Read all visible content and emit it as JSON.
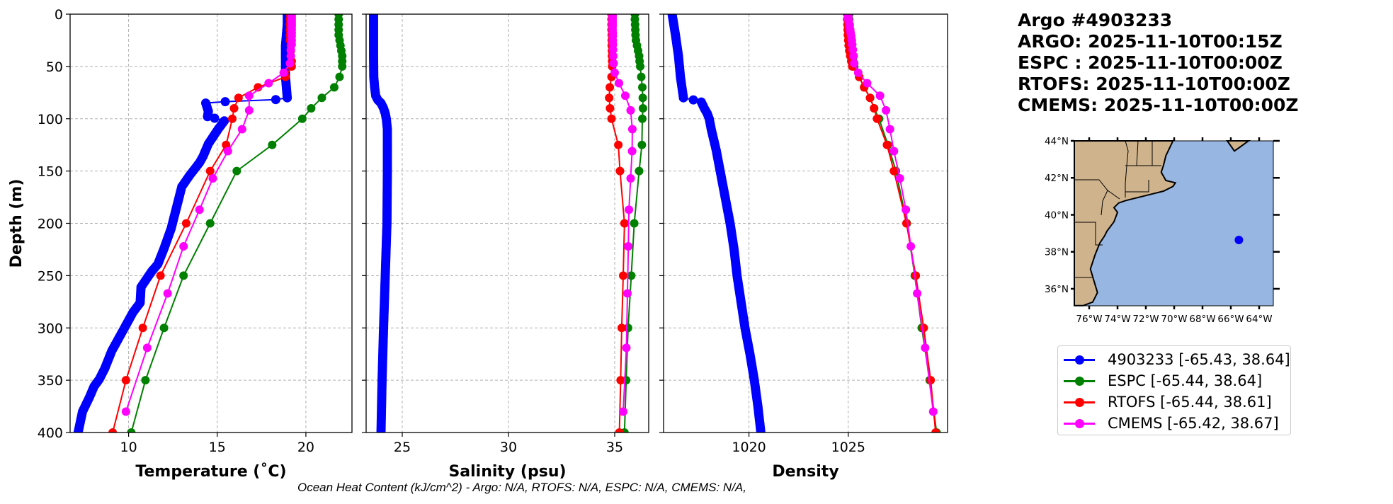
{
  "title": {
    "lines": [
      "Argo #4903233",
      "ARGO: 2025-11-10T00:15Z",
      "ESPC : 2025-11-10T00:00Z",
      "RTOFS: 2025-11-10T00:00Z",
      "CMEMS: 2025-11-10T00:00Z"
    ]
  },
  "caption": "Ocean Heat Content (kJ/cm^2) - Argo: N/A,  RTOFS: N/A,  ESPC: N/A,  CMEMS: N/A,",
  "legend": {
    "placement": "right",
    "items": [
      {
        "label": "4903233 [-65.43, 38.64]",
        "color": "#0000ff"
      },
      {
        "label": "ESPC [-65.44, 38.64]",
        "color": "#008000"
      },
      {
        "label": "RTOFS [-65.44, 38.61]",
        "color": "#ff0000"
      },
      {
        "label": "CMEMS [-65.42, 38.67]",
        "color": "#ff00ff"
      }
    ]
  },
  "map": {
    "lon_range": [
      -77.05,
      -63.0
    ],
    "lat_range": [
      35.08,
      44.0
    ],
    "lon_ticks": [
      -76,
      -74,
      -72,
      -70,
      -68,
      -66,
      -64
    ],
    "lon_tick_labels": [
      "76°W",
      "74°W",
      "72°W",
      "70°W",
      "68°W",
      "66°W",
      "64°W"
    ],
    "lat_ticks": [
      36,
      38,
      40,
      42,
      44
    ],
    "lat_tick_labels": [
      "36°N",
      "38°N",
      "40°N",
      "42°N",
      "44°N"
    ],
    "float_position": {
      "lon": -65.43,
      "lat": 38.64,
      "color": "#0000ff"
    },
    "ocean_color": "#97b6e1",
    "land_color": "#cfb38c"
  },
  "chart_data": [
    {
      "type": "line",
      "title": "",
      "xlabel": "Temperature (˚C)",
      "ylabel": "Depth (m)",
      "xlim": [
        6.7,
        22.6
      ],
      "ylim": [
        400,
        0
      ],
      "xticks": [
        10,
        15,
        20
      ],
      "xtick_labels": [
        "10",
        "15",
        "20"
      ],
      "yticks": [
        0,
        50,
        100,
        150,
        200,
        250,
        300,
        350,
        400
      ],
      "ytick_labels": [
        "0",
        "50",
        "100",
        "150",
        "200",
        "250",
        "300",
        "350",
        "400"
      ],
      "grid": true,
      "series": [
        {
          "name": "4903233",
          "color": "#0000ff",
          "dense": true,
          "depth": [
            0,
            10,
            20,
            30,
            40,
            50,
            60,
            70,
            80,
            81.7,
            83.7,
            85,
            93,
            98,
            99.5,
            102,
            110,
            124,
            136,
            142,
            154,
            165,
            185,
            205,
            224,
            239,
            246,
            261,
            276,
            285,
            302,
            322,
            339,
            349,
            356,
            366,
            380,
            400
          ],
          "values": [
            18.95,
            18.95,
            18.9,
            18.85,
            18.85,
            18.85,
            18.85,
            18.9,
            18.95,
            18.3,
            15.45,
            14.35,
            14.5,
            14.45,
            14.85,
            15.4,
            15.05,
            14.5,
            14.2,
            14.0,
            13.45,
            13.0,
            12.7,
            12.4,
            12.0,
            11.65,
            11.3,
            10.7,
            10.65,
            10.25,
            9.7,
            9.05,
            8.65,
            8.35,
            8.05,
            7.8,
            7.4,
            7.15
          ]
        },
        {
          "name": "ESPC",
          "color": "#008000",
          "depth": [
            0,
            5,
            10,
            15,
            20,
            25,
            30,
            35,
            40,
            45,
            50,
            60,
            70,
            80,
            90,
            100,
            125,
            150,
            200,
            250,
            300,
            350,
            400
          ],
          "values": [
            21.85,
            21.85,
            21.85,
            21.85,
            21.85,
            21.9,
            21.95,
            22.0,
            22.05,
            22.05,
            22.05,
            21.9,
            21.6,
            20.9,
            20.3,
            19.8,
            18.1,
            16.1,
            14.6,
            13.1,
            12.0,
            10.95,
            10.15
          ]
        },
        {
          "name": "RTOFS",
          "color": "#ff0000",
          "depth": [
            0,
            5,
            10,
            15,
            20,
            25,
            30,
            35,
            40,
            45,
            50,
            60,
            70,
            80,
            90,
            100,
            125,
            150,
            200,
            250,
            300,
            350,
            400
          ],
          "values": [
            19.1,
            19.1,
            19.1,
            19.1,
            19.1,
            19.1,
            19.15,
            19.15,
            19.15,
            19.2,
            19.2,
            18.85,
            17.3,
            16.2,
            15.95,
            15.85,
            15.5,
            14.6,
            13.25,
            11.8,
            10.8,
            9.85,
            9.1
          ]
        },
        {
          "name": "CMEMS",
          "color": "#ff00ff",
          "depth": [
            0,
            2,
            4,
            6,
            8,
            10,
            12,
            15,
            18,
            21,
            25,
            29,
            34,
            40,
            47,
            56,
            66,
            78,
            92,
            110,
            131,
            157,
            187,
            222,
            267,
            319,
            380
          ],
          "values": [
            19.2,
            19.2,
            19.2,
            19.2,
            19.2,
            19.2,
            19.2,
            19.2,
            19.2,
            19.2,
            19.2,
            19.2,
            19.15,
            19.15,
            19.1,
            18.75,
            17.9,
            16.8,
            16.8,
            16.4,
            15.6,
            14.75,
            14.0,
            13.1,
            12.2,
            11.05,
            9.85
          ]
        }
      ]
    },
    {
      "type": "line",
      "title": "",
      "xlabel": "Salinity (psu)",
      "ylabel": "",
      "xlim": [
        23.3,
        36.6
      ],
      "ylim": [
        400,
        0
      ],
      "xticks": [
        25,
        30,
        35
      ],
      "xtick_labels": [
        "25",
        "30",
        "35"
      ],
      "yticks": [
        0,
        50,
        100,
        150,
        200,
        250,
        300,
        350,
        400
      ],
      "ytick_labels": [],
      "grid": true,
      "series": [
        {
          "name": "4903233",
          "color": "#0000ff",
          "dense": true,
          "depth": [
            0,
            20,
            40,
            60,
            70,
            78,
            82,
            85,
            90,
            95,
            100,
            110,
            150,
            200,
            250,
            300,
            350,
            400
          ],
          "values": [
            23.65,
            23.65,
            23.65,
            23.66,
            23.7,
            23.75,
            23.85,
            24.0,
            24.12,
            24.2,
            24.25,
            24.3,
            24.3,
            24.28,
            24.2,
            24.12,
            24.05,
            24.0
          ]
        },
        {
          "name": "ESPC",
          "color": "#008000",
          "depth": [
            0,
            5,
            10,
            15,
            20,
            25,
            30,
            35,
            40,
            45,
            50,
            60,
            70,
            80,
            90,
            100,
            125,
            150,
            200,
            250,
            300,
            350,
            400
          ],
          "values": [
            35.95,
            35.95,
            35.96,
            35.97,
            35.98,
            36.0,
            36.05,
            36.1,
            36.15,
            36.17,
            36.2,
            36.25,
            36.3,
            36.32,
            36.33,
            36.3,
            36.28,
            36.15,
            35.92,
            35.78,
            35.63,
            35.54,
            35.46
          ]
        },
        {
          "name": "RTOFS",
          "color": "#ff0000",
          "depth": [
            0,
            5,
            10,
            15,
            20,
            25,
            30,
            35,
            40,
            45,
            50,
            60,
            70,
            80,
            90,
            100,
            125,
            150,
            200,
            250,
            300,
            350,
            400
          ],
          "values": [
            34.85,
            34.85,
            34.85,
            34.85,
            34.86,
            34.86,
            34.86,
            34.87,
            34.87,
            34.88,
            34.88,
            34.85,
            34.77,
            34.74,
            34.78,
            34.85,
            35.17,
            35.25,
            35.46,
            35.4,
            35.33,
            35.28,
            35.22
          ]
        },
        {
          "name": "CMEMS",
          "color": "#ff00ff",
          "depth": [
            0,
            2,
            4,
            6,
            8,
            10,
            12,
            15,
            18,
            21,
            25,
            29,
            34,
            40,
            47,
            56,
            66,
            78,
            92,
            110,
            131,
            157,
            187,
            222,
            267,
            319,
            380
          ],
          "values": [
            34.9,
            34.9,
            34.9,
            34.9,
            34.9,
            34.9,
            34.9,
            34.9,
            34.91,
            34.91,
            34.91,
            34.92,
            34.92,
            34.93,
            34.95,
            35.0,
            35.2,
            35.5,
            35.75,
            35.83,
            35.82,
            35.75,
            35.67,
            35.64,
            35.6,
            35.55,
            35.4
          ]
        }
      ]
    },
    {
      "type": "line",
      "title": "",
      "xlabel": "Density",
      "ylabel": "",
      "xlim": [
        1015.7,
        1030.0
      ],
      "ylim": [
        400,
        0
      ],
      "xticks": [
        1020,
        1025
      ],
      "xtick_labels": [
        "1020",
        "1025"
      ],
      "yticks": [
        0,
        50,
        100,
        150,
        200,
        250,
        300,
        350,
        400
      ],
      "ytick_labels": [],
      "grid": true,
      "series": [
        {
          "name": "4903233",
          "color": "#0000ff",
          "dense": true,
          "depth": [
            0,
            20,
            40,
            60,
            80,
            82,
            84,
            90,
            95,
            100,
            110,
            130,
            150,
            175,
            200,
            225,
            250,
            275,
            300,
            325,
            350,
            375,
            400
          ],
          "values": [
            1016.13,
            1016.3,
            1016.45,
            1016.55,
            1016.7,
            1017.2,
            1017.6,
            1017.75,
            1017.9,
            1018.0,
            1018.1,
            1018.35,
            1018.55,
            1018.8,
            1019.05,
            1019.25,
            1019.4,
            1019.6,
            1019.8,
            1020.05,
            1020.27,
            1020.45,
            1020.6
          ]
        },
        {
          "name": "ESPC",
          "color": "#008000",
          "depth": [
            0,
            5,
            10,
            15,
            20,
            25,
            30,
            35,
            40,
            45,
            50,
            60,
            70,
            80,
            90,
            100,
            125,
            150,
            200,
            250,
            300,
            350,
            400
          ],
          "values": [
            1025.05,
            1025.05,
            1025.07,
            1025.08,
            1025.1,
            1025.12,
            1025.15,
            1025.18,
            1025.2,
            1025.25,
            1025.3,
            1025.55,
            1025.8,
            1026.1,
            1026.3,
            1026.55,
            1027.0,
            1027.4,
            1027.95,
            1028.35,
            1028.7,
            1029.1,
            1029.45
          ]
        },
        {
          "name": "RTOFS",
          "color": "#ff0000",
          "depth": [
            0,
            5,
            10,
            15,
            20,
            25,
            30,
            35,
            40,
            45,
            50,
            60,
            70,
            80,
            90,
            100,
            125,
            150,
            200,
            250,
            300,
            350,
            400
          ],
          "values": [
            1024.95,
            1024.95,
            1024.96,
            1024.97,
            1024.98,
            1025.0,
            1025.02,
            1025.05,
            1025.1,
            1025.15,
            1025.2,
            1025.55,
            1025.8,
            1026.1,
            1026.3,
            1026.45,
            1026.95,
            1027.3,
            1027.93,
            1028.4,
            1028.8,
            1029.15,
            1029.4
          ]
        },
        {
          "name": "CMEMS",
          "color": "#ff00ff",
          "depth": [
            0,
            2,
            4,
            6,
            8,
            10,
            12,
            15,
            18,
            21,
            25,
            29,
            34,
            40,
            47,
            56,
            66,
            78,
            92,
            110,
            131,
            157,
            187,
            222,
            267,
            319,
            380
          ],
          "values": [
            1025.0,
            1025.0,
            1025.0,
            1025.02,
            1025.03,
            1025.05,
            1025.07,
            1025.1,
            1025.12,
            1025.15,
            1025.18,
            1025.2,
            1025.23,
            1025.27,
            1025.3,
            1025.5,
            1025.95,
            1026.6,
            1026.9,
            1027.1,
            1027.3,
            1027.6,
            1027.9,
            1028.15,
            1028.47,
            1028.87,
            1029.28
          ]
        }
      ]
    }
  ]
}
